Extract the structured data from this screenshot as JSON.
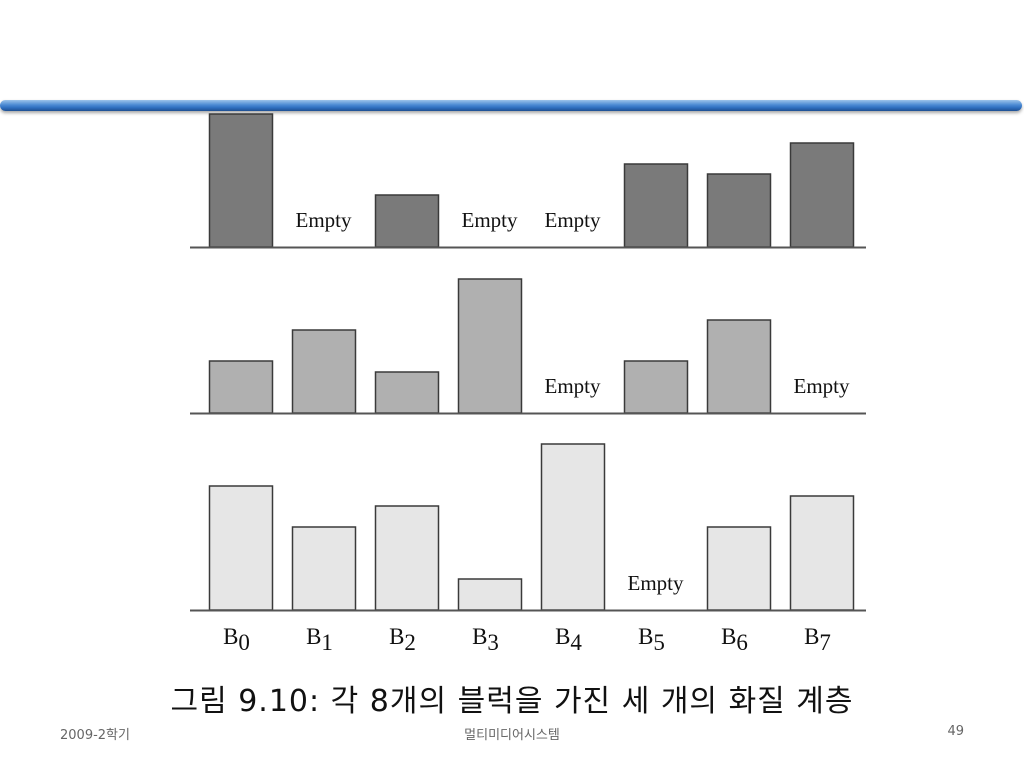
{
  "caption": "그림 9.10: 각 8개의 블럭을 가진 세 개의 화질 계층",
  "footer": {
    "left": "2009-2학기",
    "center": "멀티미디어시스템",
    "right": "49"
  },
  "colors": {
    "accent_rule": "#2f6fbf",
    "layer_1": "#7a7a7a",
    "layer_2": "#b0b0b0",
    "layer_3": "#e6e6e6"
  },
  "chart_data": {
    "type": "bar",
    "categories": [
      "B0",
      "B1",
      "B2",
      "B3",
      "B4",
      "B5",
      "B6",
      "B7"
    ],
    "category_labels": [
      {
        "base": "B",
        "sub": "0"
      },
      {
        "base": "B",
        "sub": "1"
      },
      {
        "base": "B",
        "sub": "2"
      },
      {
        "base": "B",
        "sub": "3"
      },
      {
        "base": "B",
        "sub": "4"
      },
      {
        "base": "B",
        "sub": "5"
      },
      {
        "base": "B",
        "sub": "6"
      },
      {
        "base": "B",
        "sub": "7"
      }
    ],
    "empty_label": "Empty",
    "panels": [
      {
        "values": [
          133,
          null,
          52,
          null,
          null,
          83,
          73,
          104
        ],
        "fill": "#7a7a7a"
      },
      {
        "values": [
          52,
          83,
          41,
          134,
          null,
          52,
          93,
          null
        ],
        "fill": "#b0b0b0"
      },
      {
        "values": [
          124,
          83,
          104,
          31,
          166,
          null,
          83,
          114
        ],
        "fill": "#e6e6e6"
      }
    ]
  }
}
